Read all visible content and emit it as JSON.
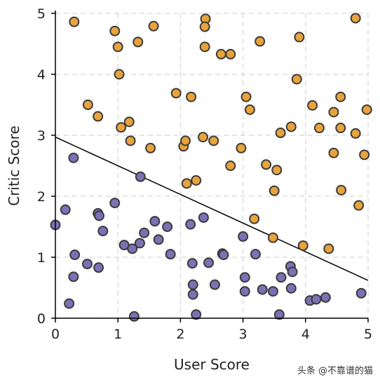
{
  "chart_data": {
    "type": "scatter",
    "title": "",
    "xlabel": "User Score",
    "ylabel": "Critic Score",
    "xlim": [
      0,
      5
    ],
    "ylim": [
      0,
      5
    ],
    "xticks": [
      "0",
      "1",
      "2",
      "3",
      "4",
      "5"
    ],
    "yticks": [
      "0",
      "1",
      "2",
      "3",
      "4",
      "5"
    ],
    "grid": true,
    "decision_line": {
      "x": [
        0,
        5
      ],
      "y": [
        2.97,
        0.62
      ],
      "color": "#000000"
    },
    "series": [
      {
        "color": "#e8a33c",
        "points": [
          [
            0.3,
            4.86
          ],
          [
            0.95,
            4.71
          ],
          [
            1.0,
            4.45
          ],
          [
            1.32,
            4.53
          ],
          [
            1.57,
            4.79
          ],
          [
            2.4,
            4.91
          ],
          [
            2.39,
            4.78
          ],
          [
            2.39,
            4.45
          ],
          [
            2.65,
            4.33
          ],
          [
            2.8,
            4.33
          ],
          [
            3.27,
            4.54
          ],
          [
            3.9,
            4.61
          ],
          [
            4.8,
            4.92
          ],
          [
            1.02,
            4.0
          ],
          [
            3.86,
            3.92
          ],
          [
            0.52,
            3.5
          ],
          [
            0.68,
            3.31
          ],
          [
            1.93,
            3.69
          ],
          [
            2.17,
            3.63
          ],
          [
            3.05,
            3.63
          ],
          [
            3.11,
            3.42
          ],
          [
            4.11,
            3.49
          ],
          [
            4.56,
            3.63
          ],
          [
            4.45,
            3.38
          ],
          [
            4.98,
            3.42
          ],
          [
            1.05,
            3.13
          ],
          [
            1.18,
            3.22
          ],
          [
            1.2,
            2.91
          ],
          [
            1.52,
            2.79
          ],
          [
            2.05,
            2.82
          ],
          [
            2.08,
            2.91
          ],
          [
            2.36,
            2.97
          ],
          [
            2.53,
            2.91
          ],
          [
            2.97,
            2.79
          ],
          [
            3.6,
            3.04
          ],
          [
            3.77,
            3.14
          ],
          [
            4.22,
            3.12
          ],
          [
            4.56,
            3.12
          ],
          [
            4.8,
            3.03
          ],
          [
            4.45,
            2.71
          ],
          [
            4.94,
            2.68
          ],
          [
            2.8,
            2.5
          ],
          [
            3.37,
            2.52
          ],
          [
            3.54,
            2.43
          ],
          [
            2.1,
            2.21
          ],
          [
            2.25,
            2.26
          ],
          [
            3.5,
            2.09
          ],
          [
            4.57,
            2.1
          ],
          [
            4.85,
            1.85
          ],
          [
            3.18,
            1.63
          ],
          [
            3.48,
            1.32
          ],
          [
            3.96,
            1.19
          ],
          [
            4.37,
            1.14
          ]
        ]
      },
      {
        "color": "#7b72b5",
        "points": [
          [
            0.29,
            2.63
          ],
          [
            1.36,
            2.32
          ],
          [
            0.16,
            1.78
          ],
          [
            0.0,
            1.53
          ],
          [
            0.68,
            1.72
          ],
          [
            0.7,
            1.68
          ],
          [
            0.76,
            1.43
          ],
          [
            0.95,
            1.89
          ],
          [
            1.1,
            1.2
          ],
          [
            1.23,
            1.14
          ],
          [
            1.35,
            1.23
          ],
          [
            1.42,
            1.4
          ],
          [
            1.59,
            1.59
          ],
          [
            1.65,
            1.29
          ],
          [
            1.79,
            1.5
          ],
          [
            1.84,
            1.05
          ],
          [
            2.16,
            1.54
          ],
          [
            2.37,
            1.65
          ],
          [
            0.31,
            1.04
          ],
          [
            0.51,
            0.89
          ],
          [
            0.69,
            0.83
          ],
          [
            0.29,
            0.68
          ],
          [
            0.22,
            0.24
          ],
          [
            1.26,
            0.03
          ],
          [
            2.19,
            0.9
          ],
          [
            2.45,
            0.91
          ],
          [
            2.67,
            1.06
          ],
          [
            2.69,
            1.04
          ],
          [
            3.0,
            1.34
          ],
          [
            3.2,
            1.05
          ],
          [
            2.2,
            0.55
          ],
          [
            2.2,
            0.39
          ],
          [
            2.55,
            0.55
          ],
          [
            3.03,
            0.67
          ],
          [
            3.03,
            0.44
          ],
          [
            3.31,
            0.47
          ],
          [
            3.48,
            0.44
          ],
          [
            3.61,
            0.67
          ],
          [
            3.76,
            0.85
          ],
          [
            3.79,
            0.76
          ],
          [
            3.77,
            0.49
          ],
          [
            3.58,
            0.06
          ],
          [
            2.25,
            0.06
          ],
          [
            4.07,
            0.29
          ],
          [
            4.17,
            0.31
          ],
          [
            4.32,
            0.34
          ],
          [
            4.89,
            0.41
          ]
        ]
      }
    ]
  },
  "watermark": "头条 @不靠谱的猫"
}
